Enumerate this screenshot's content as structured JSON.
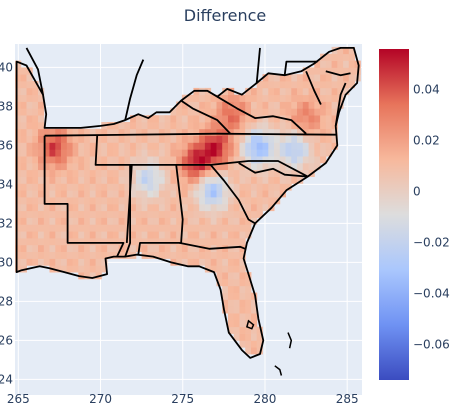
{
  "chart_data": {
    "type": "heatmap",
    "title": "Difference",
    "xlabel": "",
    "ylabel": "",
    "xlim": [
      264.8,
      285.9
    ],
    "ylim": [
      23.2,
      41.2
    ],
    "x_ticks": [
      265,
      270,
      275,
      280,
      285
    ],
    "y_ticks": [
      24,
      26,
      28,
      30,
      32,
      34,
      36,
      38,
      40
    ],
    "grid": true,
    "colorbar": {
      "range": [
        -0.074,
        0.056
      ],
      "ticks": [
        0.04,
        0.02,
        0,
        -0.02,
        -0.04,
        -0.06
      ],
      "tick_labels": [
        "0.04",
        "0.02",
        "0",
        "−0.02",
        "−0.04",
        "−0.06"
      ],
      "colorscale": [
        "#3b4cc0",
        "#6f92f3",
        "#aac7fd",
        "#dddddd",
        "#f7b89c",
        "#e7745b",
        "#b40426"
      ]
    },
    "plot_background": "#e5ecf6",
    "boundary_color": "#000000",
    "summary": {
      "typical_value": 0.01,
      "high_regions": [
        {
          "lon": 277.0,
          "lat": 35.9,
          "value": 0.05
        },
        {
          "lon": 275.8,
          "lat": 35.1,
          "value": 0.05
        },
        {
          "lon": 267.2,
          "lat": 35.9,
          "value": 0.045
        },
        {
          "lon": 278.0,
          "lat": 37.6,
          "value": 0.035
        },
        {
          "lon": 282.5,
          "lat": 37.4,
          "value": 0.03
        }
      ],
      "low_regions": [
        {
          "lon": 279.6,
          "lat": 35.9,
          "value": -0.035
        },
        {
          "lon": 276.8,
          "lat": 33.7,
          "value": -0.03
        },
        {
          "lon": 281.8,
          "lat": 35.8,
          "value": -0.025
        },
        {
          "lon": 272.9,
          "lat": 34.3,
          "value": -0.02
        }
      ]
    }
  }
}
